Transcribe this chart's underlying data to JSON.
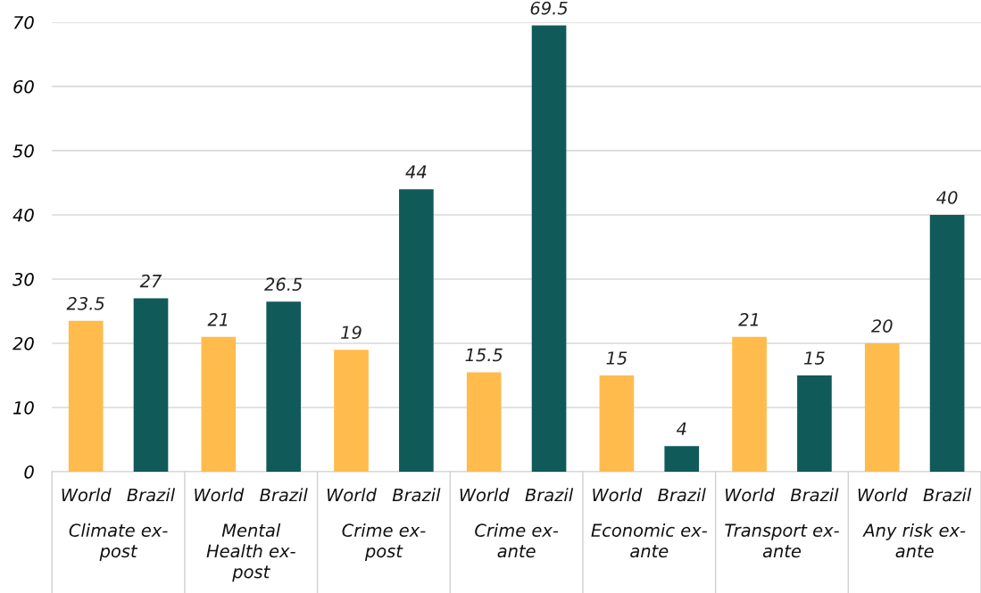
{
  "chart_data": {
    "type": "bar",
    "categories": [
      "Climate ex-\npost",
      "Mental\nHealth ex-\npost",
      "Crime ex-\npost",
      "Crime ex-\nante",
      "Economic ex-\nante",
      "Transport ex-\nante",
      "Any risk ex-\nante"
    ],
    "series": [
      {
        "name": "World",
        "color": "#ffbc4c",
        "values": [
          23.5,
          21,
          19,
          15.5,
          15,
          21,
          20
        ]
      },
      {
        "name": "Brazil",
        "color": "#105a5a",
        "values": [
          27,
          26.5,
          44,
          69.5,
          4,
          15,
          40
        ]
      }
    ],
    "ylim": [
      0,
      70
    ],
    "yticks": [
      0,
      10,
      20,
      30,
      40,
      50,
      60,
      70
    ],
    "grid": "y",
    "data_labels": true,
    "legend": false
  }
}
